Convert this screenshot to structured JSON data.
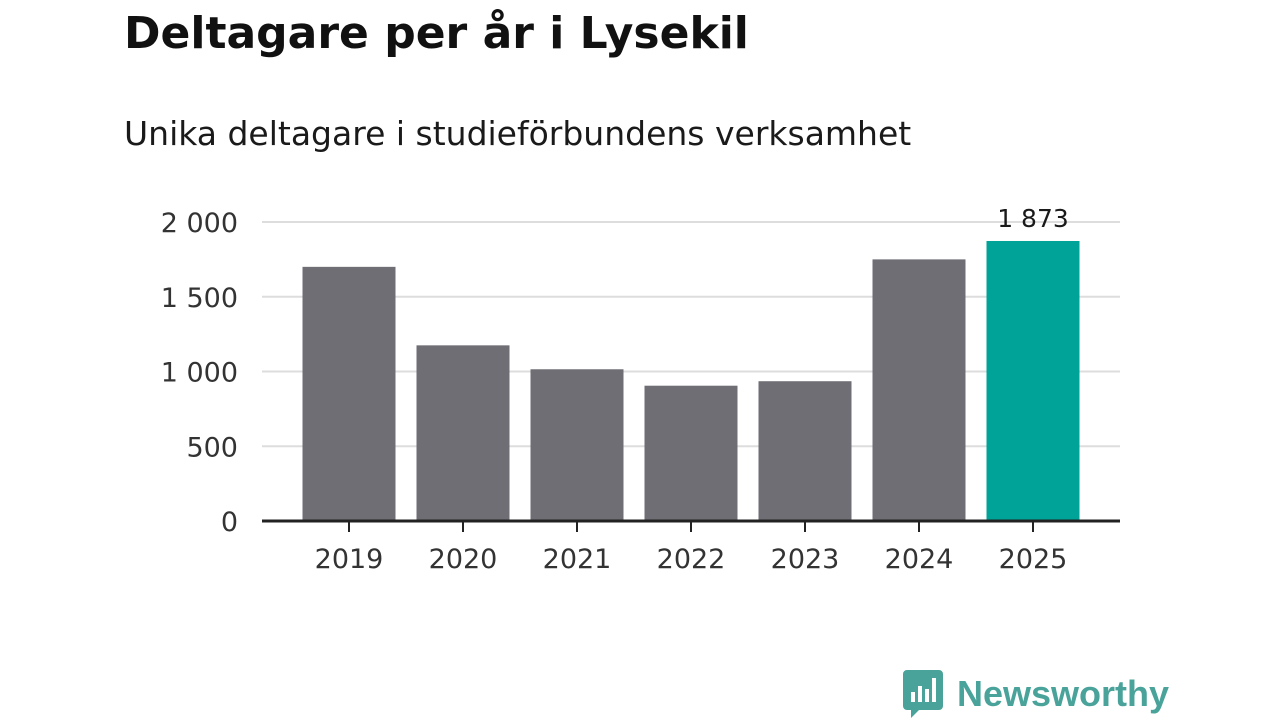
{
  "title": "Deltagare per år i Lysekil",
  "subtitle": "Unika deltagare i studieförbundens verksamhet",
  "colors": {
    "bar": "#6f6e74",
    "highlight": "#00a398",
    "grid": "#dddddd",
    "axis": "#222222",
    "logo": "#4aa39a"
  },
  "chart_data": {
    "type": "bar",
    "title": "Deltagare per år i Lysekil",
    "subtitle": "Unika deltagare i studieförbundens verksamhet",
    "categories": [
      "2019",
      "2020",
      "2021",
      "2022",
      "2023",
      "2024",
      "2025"
    ],
    "values": [
      1700,
      1175,
      1015,
      905,
      935,
      1750,
      1873
    ],
    "highlight_index": 6,
    "data_labels": [
      {
        "index": 6,
        "text": "1 873"
      }
    ],
    "ylim": [
      0,
      2000
    ],
    "yticks": [
      {
        "value": 0,
        "label": "0"
      },
      {
        "value": 500,
        "label": "500"
      },
      {
        "value": 1000,
        "label": "1 000"
      },
      {
        "value": 1500,
        "label": "1 500"
      },
      {
        "value": 2000,
        "label": "2 000"
      }
    ],
    "grid": true,
    "legend": "none"
  },
  "logo": {
    "icon": "newsworthy-chart-bubble-icon",
    "text": "Newsworthy"
  }
}
